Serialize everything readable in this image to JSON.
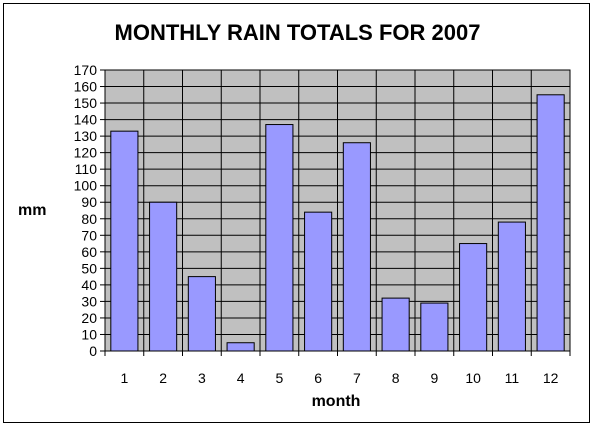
{
  "chart_data": {
    "type": "bar",
    "title": "MONTHLY RAIN TOTALS FOR 2007",
    "xlabel": "month",
    "ylabel": "mm",
    "categories": [
      "1",
      "2",
      "3",
      "4",
      "5",
      "6",
      "7",
      "8",
      "9",
      "10",
      "11",
      "12"
    ],
    "values": [
      133,
      90,
      45,
      5,
      137,
      84,
      126,
      32,
      29,
      65,
      78,
      155
    ],
    "ylim": [
      0,
      170
    ],
    "ytick_step": 10,
    "grid": true,
    "legend": "none",
    "colors": {
      "bar_fill": "#9999ff",
      "plot_background": "#c0c0c0",
      "gridline": "#000000"
    }
  }
}
